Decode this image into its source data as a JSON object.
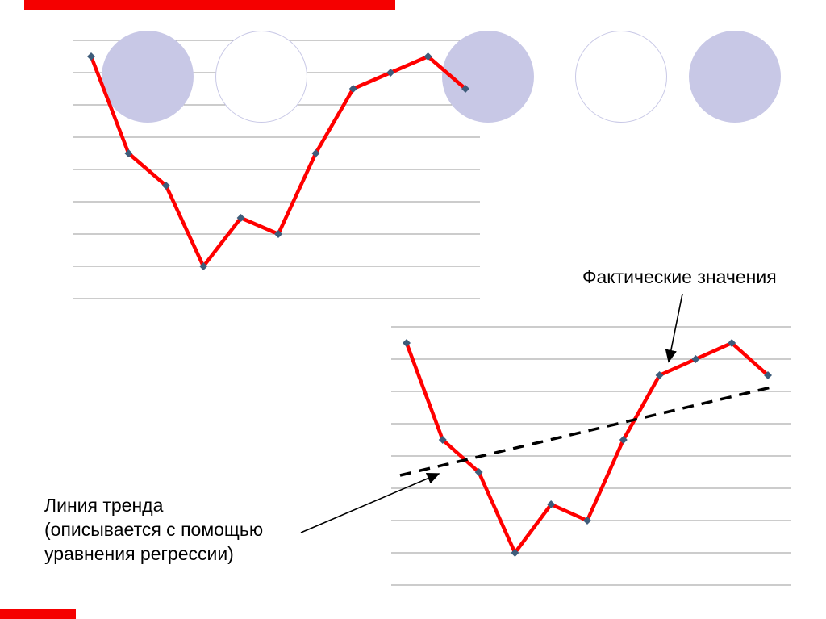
{
  "slide": {
    "background": "#ffffff",
    "accent_color": "#f50000"
  },
  "decor": {
    "circle_color": "#c8c8e6",
    "outline_fill": "#ffffff"
  },
  "annotations": {
    "actual_values": {
      "label": "Фактические значения"
    },
    "trend": {
      "lines": [
        "Линия тренда",
        "(описывается с помощью",
        "уравнения регрессии)"
      ]
    }
  },
  "chart_data": [
    {
      "type": "line",
      "title": "",
      "xlabel": "",
      "ylabel": "",
      "x": [
        1,
        2,
        3,
        4,
        5,
        6,
        7,
        8,
        9,
        10,
        11
      ],
      "series": [
        {
          "name": "Фактические значения",
          "values": [
            7.5,
            4.5,
            3.5,
            1.0,
            2.5,
            2.0,
            4.5,
            6.5,
            7.0,
            7.5,
            6.5
          ],
          "color": "#ff0000",
          "marker": "diamond",
          "marker_color": "#3e5c7a"
        }
      ],
      "ylim": [
        0,
        8
      ],
      "grid": true,
      "grid_color": "#989898",
      "legend": "none"
    },
    {
      "type": "line",
      "title": "",
      "xlabel": "",
      "ylabel": "",
      "x": [
        1,
        2,
        3,
        4,
        5,
        6,
        7,
        8,
        9,
        10,
        11
      ],
      "series": [
        {
          "name": "Фактические значения",
          "values": [
            7.5,
            4.5,
            3.5,
            1.0,
            2.5,
            2.0,
            4.5,
            6.5,
            7.0,
            7.5,
            6.5
          ],
          "color": "#ff0000",
          "marker": "diamond",
          "marker_color": "#3e5c7a"
        },
        {
          "name": "Линия тренда (уравнение регрессии)",
          "style": "dashed",
          "start": 3.4,
          "end": 6.15,
          "color": "#000000"
        }
      ],
      "ylim": [
        0,
        8
      ],
      "grid": true,
      "grid_color": "#989898",
      "legend": "none"
    }
  ]
}
